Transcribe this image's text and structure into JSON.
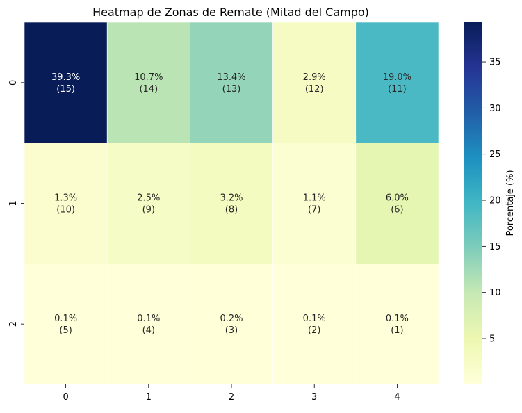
{
  "chart_data": {
    "type": "heatmap",
    "title": "Heatmap de Zonas de Remate (Mitad del Campo)",
    "xlabel": "",
    "ylabel": "",
    "x_categories": [
      "0",
      "1",
      "2",
      "3",
      "4"
    ],
    "y_categories": [
      "0",
      "1",
      "2"
    ],
    "values": [
      [
        39.3,
        10.7,
        13.4,
        2.9,
        19.0
      ],
      [
        1.3,
        2.5,
        3.2,
        1.1,
        6.0
      ],
      [
        0.1,
        0.1,
        0.2,
        0.1,
        0.1
      ]
    ],
    "cell_labels": [
      [
        "39.3%",
        "10.7%",
        "13.4%",
        "2.9%",
        "19.0%"
      ],
      [
        "1.3%",
        "2.5%",
        "3.2%",
        "1.1%",
        "6.0%"
      ],
      [
        "0.1%",
        "0.1%",
        "0.2%",
        "0.1%",
        "0.1%"
      ]
    ],
    "zone_ids": [
      [
        "(15)",
        "(14)",
        "(13)",
        "(12)",
        "(11)"
      ],
      [
        "(10)",
        "(9)",
        "(8)",
        "(7)",
        "(6)"
      ],
      [
        "(5)",
        "(4)",
        "(3)",
        "(2)",
        "(1)"
      ]
    ],
    "colorbar": {
      "label": "Porcentaje (%)",
      "range": [
        0.1,
        39.3
      ],
      "ticks": [
        5,
        10,
        15,
        20,
        25,
        30,
        35
      ],
      "tick_labels": [
        "5",
        "10",
        "15",
        "20",
        "25",
        "30",
        "35"
      ]
    },
    "colormap": "YlGnBu",
    "colormap_stops": [
      "#ffffd9",
      "#edf8b1",
      "#c7e9b4",
      "#7fcdbb",
      "#41b6c4",
      "#1d91c0",
      "#225ea8",
      "#253494",
      "#081d58"
    ]
  }
}
